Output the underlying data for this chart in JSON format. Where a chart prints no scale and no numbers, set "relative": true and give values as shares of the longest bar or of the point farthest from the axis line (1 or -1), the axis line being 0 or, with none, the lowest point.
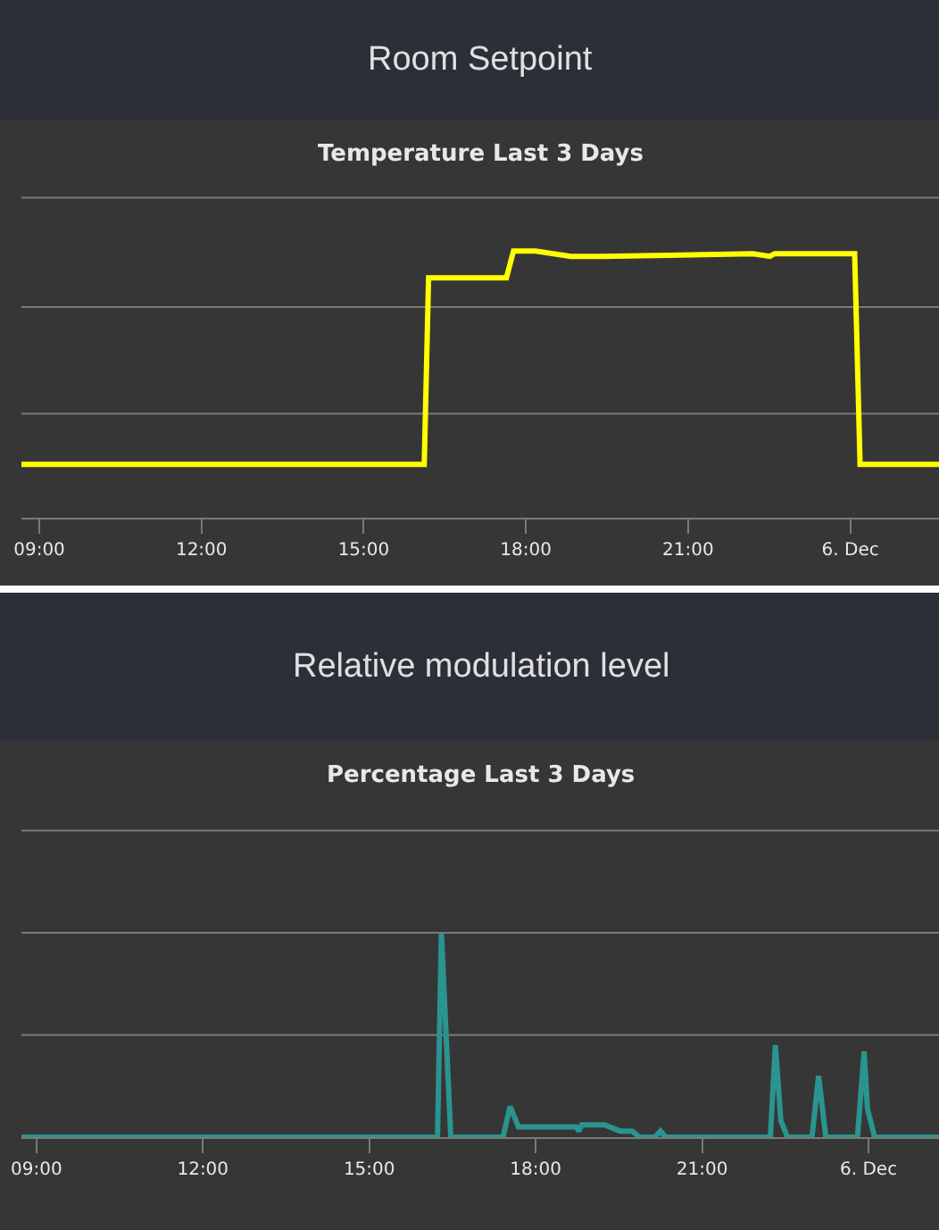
{
  "chart_data": [
    {
      "type": "line",
      "title": "Room Setpoint",
      "subtitle": "Temperature Last 3 Days",
      "relative": true,
      "ref_lines": [
        {
          "axis": "y",
          "value": 0.39,
          "label": null,
          "color": "#7a7a7a"
        },
        {
          "axis": "y",
          "value": 0.79,
          "label": null,
          "color": "#7a7a7a"
        },
        {
          "axis": "y",
          "value": 1.2,
          "label": null,
          "color": "#7a7a7a"
        }
      ],
      "marker": "none",
      "line_style": "solid",
      "xlim": [
        8.67,
        25.64
      ],
      "xticks": [
        {
          "value": 9,
          "label": "09:00"
        },
        {
          "value": 12,
          "label": "12:00"
        },
        {
          "value": 15,
          "label": "15:00"
        },
        {
          "value": 18,
          "label": "18:00"
        },
        {
          "value": 21,
          "label": "21:00"
        },
        {
          "value": 24,
          "label": "6. Dec"
        }
      ],
      "series": [
        {
          "color": "#ffff00",
          "x": [
            8.67,
            16.12,
            16.2,
            17.64,
            17.77,
            18.18,
            18.83,
            19.41,
            22.2,
            22.51,
            22.6,
            24.08,
            24.18,
            25.64
          ],
          "values": [
            0.2,
            0.2,
            0.9,
            0.9,
            1.0,
            1.0,
            0.98,
            0.98,
            0.99,
            0.98,
            0.99,
            0.99,
            0.2,
            0.2
          ]
        }
      ]
    },
    {
      "type": "line",
      "title": "Relative modulation level",
      "subtitle": "Percentage Last 3 Days",
      "relative": true,
      "ref_lines": [
        {
          "axis": "y",
          "value": 0.5,
          "label": null,
          "color": "#7a7a7a"
        },
        {
          "axis": "y",
          "value": 1.0,
          "label": null,
          "color": "#7a7a7a"
        },
        {
          "axis": "y",
          "value": 1.5,
          "label": null,
          "color": "#7a7a7a"
        }
      ],
      "marker": "none",
      "line_style": "solid",
      "xlim": [
        8.73,
        25.27
      ],
      "xticks": [
        {
          "value": 9,
          "label": "09:00"
        },
        {
          "value": 12,
          "label": "12:00"
        },
        {
          "value": 15,
          "label": "15:00"
        },
        {
          "value": 18,
          "label": "18:00"
        },
        {
          "value": 21,
          "label": "21:00"
        },
        {
          "value": 24,
          "label": "6. Dec"
        }
      ],
      "series": [
        {
          "color": "#2a9490",
          "x": [
            8.73,
            16.23,
            16.3,
            16.47,
            17.41,
            17.54,
            17.69,
            18.73,
            18.78,
            18.83,
            19.24,
            19.52,
            19.74,
            19.87,
            20.15,
            20.25,
            20.34,
            22.23,
            22.32,
            22.42,
            22.54,
            22.98,
            23.1,
            23.23,
            23.8,
            23.92,
            23.98,
            24.11,
            25.27
          ],
          "values": [
            0,
            0,
            1.0,
            0,
            0,
            0.15,
            0.05,
            0.05,
            0.03,
            0.06,
            0.06,
            0.03,
            0.03,
            0,
            0,
            0.03,
            0,
            0,
            0.45,
            0.08,
            0,
            0,
            0.3,
            0,
            0,
            0.42,
            0.14,
            0,
            0
          ]
        }
      ]
    }
  ]
}
